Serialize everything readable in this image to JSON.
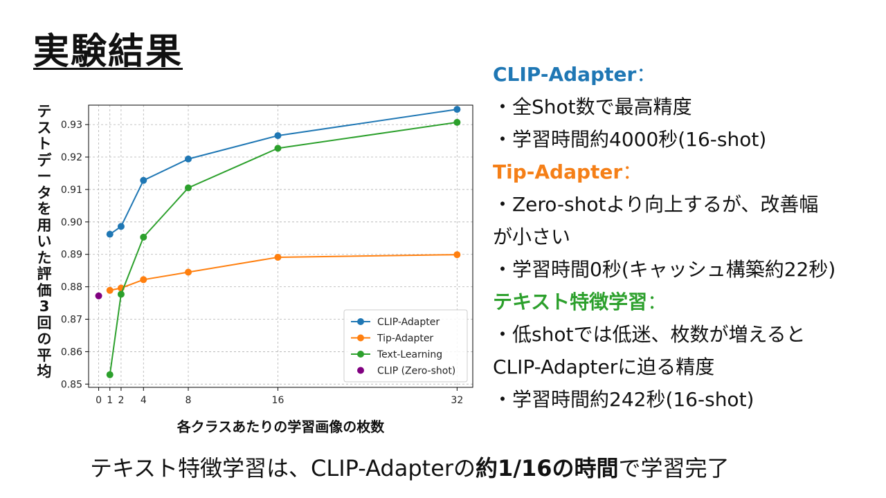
{
  "slide": {
    "title": "実験結果"
  },
  "colors": {
    "clip_adapter": "#1f77b4",
    "tip_adapter": "#ff7f0e",
    "text_learning": "#2ca02c",
    "clip_zero_shot": "#800080",
    "heading_orange": "#f57f17"
  },
  "chart_data": {
    "type": "line",
    "xlabel": "各クラスあたりの学習画像の枚数",
    "ylabel": "テストデータを用いた評価3回の平均",
    "x_ticks": [
      0,
      1,
      2,
      4,
      8,
      16,
      32
    ],
    "y_ticks": [
      "0.85",
      "0.86",
      "0.87",
      "0.88",
      "0.89",
      "0.90",
      "0.91",
      "0.92",
      "0.93"
    ],
    "ylim": [
      0.849,
      0.936
    ],
    "xlim": [
      -0.9,
      33.4
    ],
    "grid": true,
    "legend_position": "lower right",
    "series": [
      {
        "name": "CLIP-Adapter",
        "color": "#1f77b4",
        "x": [
          1,
          2,
          4,
          8,
          16,
          32
        ],
        "y": [
          0.8962,
          0.8986,
          0.9128,
          0.9194,
          0.9266,
          0.9347
        ]
      },
      {
        "name": "Tip-Adapter",
        "color": "#ff7f0e",
        "x": [
          1,
          2,
          4,
          8,
          16,
          32
        ],
        "y": [
          0.8789,
          0.8796,
          0.8822,
          0.8845,
          0.8891,
          0.8899
        ]
      },
      {
        "name": "Text-Learning",
        "color": "#2ca02c",
        "x": [
          1,
          2,
          4,
          8,
          16,
          32
        ],
        "y": [
          0.8529,
          0.8777,
          0.8953,
          0.9105,
          0.9227,
          0.9307
        ]
      },
      {
        "name": "CLIP (Zero-shot)",
        "color": "#800080",
        "type": "scatter",
        "x": [
          0
        ],
        "y": [
          0.8772
        ]
      }
    ]
  },
  "notes": {
    "clip_adapter": {
      "heading": "CLIP-Adapter",
      "colon": "：",
      "bullet1": "・全Shot数で最高精度",
      "bullet2": "・学習時間約4000秒(16-shot)"
    },
    "tip_adapter": {
      "heading": "Tip-Adapter",
      "colon": "：",
      "bullet1_line1": "・Zero-shotより向上するが、改善幅",
      "bullet1_line2": "が小さい",
      "bullet2": "・学習時間0秒(キャッシュ構築約22秒)"
    },
    "text_learning": {
      "heading": "テキスト特徴学習",
      "colon": "：",
      "bullet1_line1": "・低shotでは低迷、枚数が増えると",
      "bullet1_line2": "CLIP-Adapterに迫る精度",
      "bullet2": "・学習時間約242秒(16-shot)"
    }
  },
  "footer": {
    "prefix": "テキスト特徴学習は、CLIP-Adapterの",
    "bold": "約1/16の時間",
    "suffix": "で学習完了"
  }
}
